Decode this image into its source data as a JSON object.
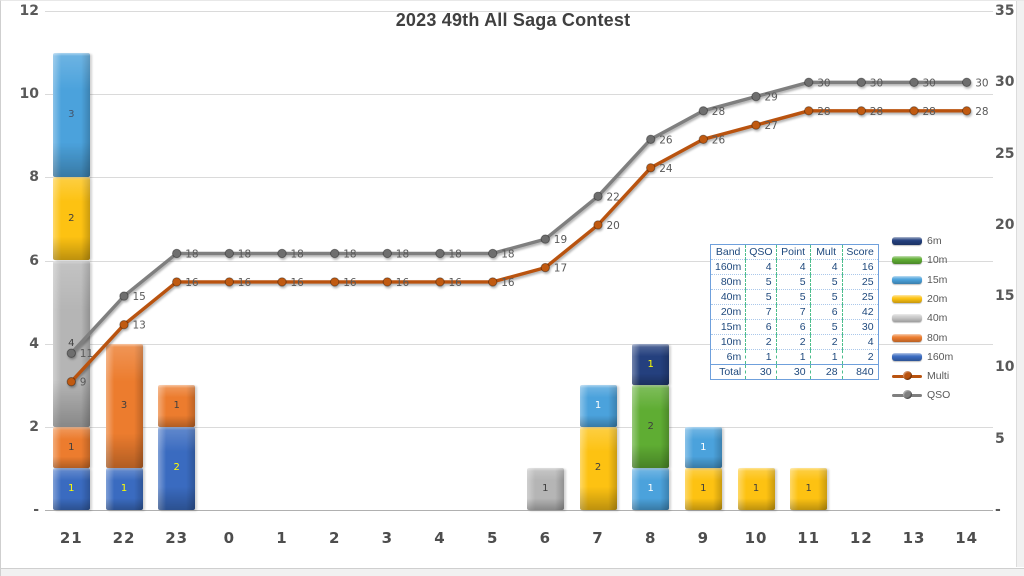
{
  "title": "2023 49th All Saga Contest",
  "chart_data": {
    "type": "bar",
    "subtype": "stacked-column with cumulative line overlay",
    "categories": [
      "21",
      "22",
      "23",
      "0",
      "1",
      "2",
      "3",
      "4",
      "5",
      "6",
      "7",
      "8",
      "9",
      "10",
      "11",
      "12",
      "13",
      "14"
    ],
    "bar_series": [
      {
        "name": "160m",
        "color": "#3A6BC0",
        "label_color": "#FFFF00",
        "values": [
          1,
          1,
          2,
          0,
          0,
          0,
          0,
          0,
          0,
          0,
          0,
          0,
          0,
          0,
          0,
          0,
          0,
          0
        ]
      },
      {
        "name": "80m",
        "color": "#EC7C2E",
        "label_color": "#3F3F3F",
        "values": [
          1,
          3,
          1,
          0,
          0,
          0,
          0,
          0,
          0,
          0,
          0,
          0,
          0,
          0,
          0,
          0,
          0,
          0
        ]
      },
      {
        "name": "40m",
        "color": "#B5B5B5",
        "label_color": "#3F3F3F",
        "values": [
          4,
          0,
          0,
          0,
          0,
          0,
          0,
          0,
          0,
          1,
          0,
          0,
          0,
          0,
          0,
          0,
          0,
          0
        ]
      },
      {
        "name": "20m",
        "color": "#FDC212",
        "label_color": "#3F3F3F",
        "values": [
          2,
          0,
          0,
          0,
          0,
          0,
          0,
          0,
          0,
          0,
          2,
          0,
          1,
          1,
          1,
          0,
          0,
          0
        ]
      },
      {
        "name": "15m",
        "color": "#4BA2DC",
        "label_color": "#FFFFFF",
        "label_overrides": {
          "0": "#44546A"
        },
        "values": [
          3,
          0,
          0,
          0,
          0,
          0,
          0,
          0,
          0,
          0,
          1,
          1,
          1,
          0,
          0,
          0,
          0,
          0
        ]
      },
      {
        "name": "10m",
        "color": "#5FAD33",
        "label_color": "#3F3F3F",
        "values": [
          0,
          0,
          0,
          0,
          0,
          0,
          0,
          0,
          0,
          0,
          0,
          2,
          0,
          0,
          0,
          0,
          0,
          0
        ]
      },
      {
        "name": "6m",
        "color": "#24407E",
        "label_color": "#FFFF00",
        "values": [
          0,
          0,
          0,
          0,
          0,
          0,
          0,
          0,
          0,
          0,
          0,
          1,
          0,
          0,
          0,
          0,
          0,
          0
        ]
      }
    ],
    "line_series": [
      {
        "name": "Multi",
        "color": "#B9530F",
        "marker_color": "#C05A11",
        "values": [
          9,
          13,
          16,
          16,
          16,
          16,
          16,
          16,
          16,
          17,
          20,
          24,
          26,
          27,
          28,
          28,
          28,
          28
        ]
      },
      {
        "name": "QSO",
        "color": "#7F7F7F",
        "marker_color": "#6E6E6E",
        "values": [
          11,
          15,
          18,
          18,
          18,
          18,
          18,
          18,
          18,
          19,
          22,
          26,
          28,
          29,
          30,
          30,
          30,
          30
        ]
      }
    ],
    "left_axis": {
      "min": 0,
      "max": 12,
      "step": 2,
      "ticks": [
        "12",
        "10",
        "8",
        "6",
        "4",
        "2",
        "-"
      ]
    },
    "right_axis": {
      "min": 0,
      "max": 35,
      "step": 5,
      "ticks": [
        "35",
        "30",
        "25",
        "20",
        "15",
        "10",
        "5",
        "-"
      ]
    },
    "grid": true,
    "legend_position": "right-middle",
    "xlabel": "",
    "ylabel": ""
  },
  "table": {
    "headers": [
      "Band",
      "QSO",
      "Point",
      "Mult",
      "Score"
    ],
    "rows": [
      [
        "160m",
        "4",
        "4",
        "4",
        "16"
      ],
      [
        "80m",
        "5",
        "5",
        "5",
        "25"
      ],
      [
        "40m",
        "5",
        "5",
        "5",
        "25"
      ],
      [
        "20m",
        "7",
        "7",
        "6",
        "42"
      ],
      [
        "15m",
        "6",
        "6",
        "5",
        "30"
      ],
      [
        "10m",
        "2",
        "2",
        "2",
        "4"
      ],
      [
        "6m",
        "1",
        "1",
        "1",
        "2"
      ]
    ],
    "total_row": [
      "Total",
      "30",
      "30",
      "28",
      "840"
    ]
  },
  "legend": {
    "items": [
      {
        "label": "6m",
        "type": "bar",
        "color": "#24407E"
      },
      {
        "label": "10m",
        "type": "bar",
        "color": "#5FAD33"
      },
      {
        "label": "15m",
        "type": "bar",
        "color": "#4BA2DC"
      },
      {
        "label": "20m",
        "type": "bar",
        "color": "#FDC212"
      },
      {
        "label": "40m",
        "type": "bar",
        "color": "#C9C9C9"
      },
      {
        "label": "80m",
        "type": "bar",
        "color": "#EC7C2E"
      },
      {
        "label": "160m",
        "type": "bar",
        "color": "#3A6BC0"
      },
      {
        "label": "Multi",
        "type": "line",
        "color": "#B9530F"
      },
      {
        "label": "QSO",
        "type": "line",
        "color": "#7F7F7F"
      }
    ]
  }
}
